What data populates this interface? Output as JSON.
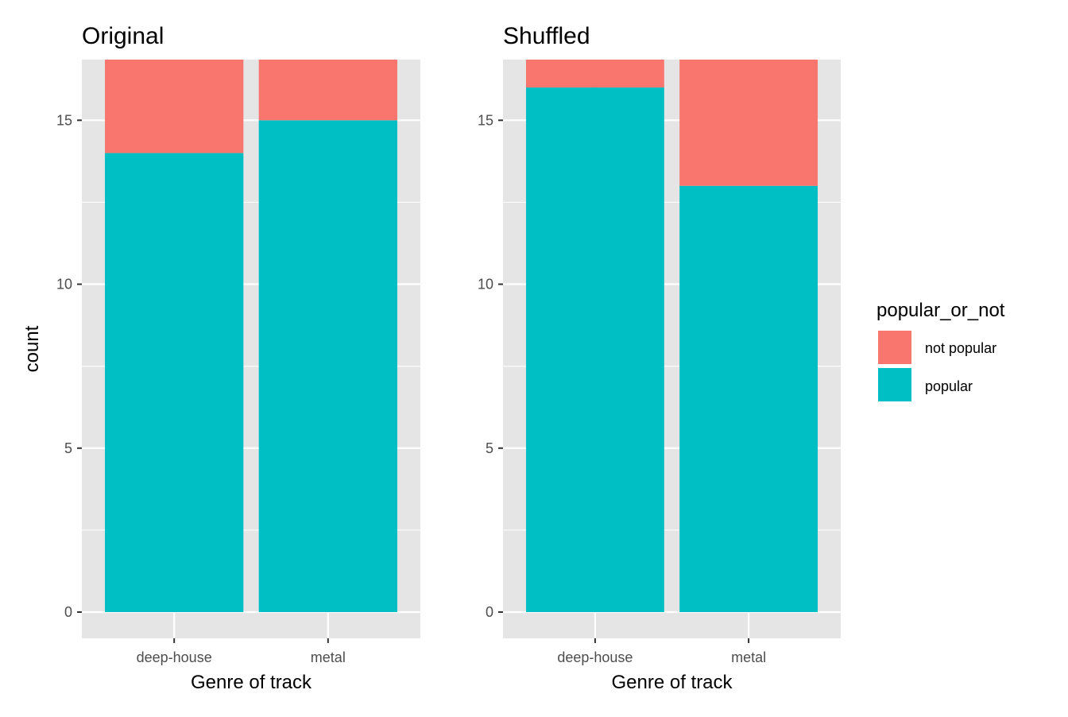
{
  "chart_data": [
    {
      "type": "bar",
      "stacked": true,
      "title": "Original",
      "xlabel": "Genre of track",
      "ylabel": "count",
      "categories": [
        "deep-house",
        "metal"
      ],
      "series": [
        {
          "name": "not popular",
          "values": [
            3,
            2
          ],
          "color": "#F8766D"
        },
        {
          "name": "popular",
          "values": [
            14,
            15
          ],
          "color": "#00BFC4"
        }
      ],
      "ylim": [
        0,
        17
      ],
      "yticks": [
        0,
        5,
        10,
        15
      ],
      "grid": true
    },
    {
      "type": "bar",
      "stacked": true,
      "title": "Shuffled",
      "xlabel": "Genre of track",
      "ylabel": "",
      "categories": [
        "deep-house",
        "metal"
      ],
      "series": [
        {
          "name": "not popular",
          "values": [
            1,
            4
          ],
          "color": "#F8766D"
        },
        {
          "name": "popular",
          "values": [
            16,
            13
          ],
          "color": "#00BFC4"
        }
      ],
      "ylim": [
        0,
        17
      ],
      "yticks": [
        0,
        5,
        10,
        15
      ],
      "grid": true
    }
  ],
  "legend": {
    "title": "popular_or_not",
    "placement": "right",
    "items": [
      {
        "label": "not popular",
        "color": "#F8766D"
      },
      {
        "label": "popular",
        "color": "#00BFC4"
      }
    ]
  }
}
